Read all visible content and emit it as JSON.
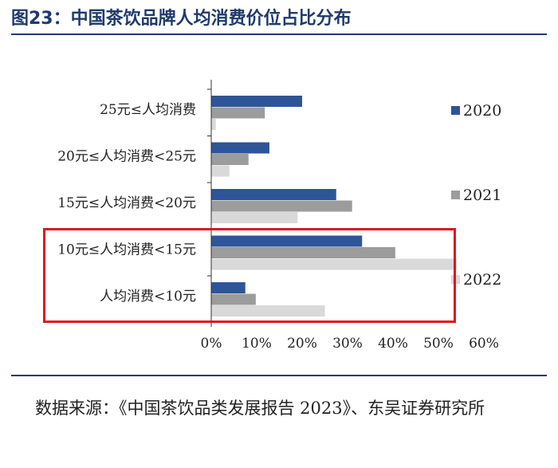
{
  "figure": {
    "title": "图23：中国茶饮品牌人均消费价位占比分布",
    "source": "数据来源：《中国茶饮品类发展报告 2023》、东吴证券研究所"
  },
  "colors": {
    "title": "#1f3a6d",
    "rule": "#1f3a6d",
    "highlight": "#e0151e",
    "series": [
      "#2e5597",
      "#9c9c9c",
      "#d9d9d9"
    ]
  },
  "chart_data": {
    "type": "bar",
    "orientation": "horizontal",
    "categories": [
      "25元≤人均消费",
      "20元≤人均消费<25元",
      "15元≤人均消费<20元",
      "10元≤人均消费<15元",
      "人均消费<10元"
    ],
    "series": [
      {
        "name": "2020",
        "values": [
          20,
          12.8,
          27.5,
          33.2,
          7.5
        ]
      },
      {
        "name": "2021",
        "values": [
          11.8,
          8.2,
          31,
          40.5,
          9.8
        ]
      },
      {
        "name": "2022",
        "values": [
          1,
          4,
          19,
          54,
          25
        ]
      }
    ],
    "xticks": [
      "0%",
      "10%",
      "20%",
      "30%",
      "40%",
      "50%",
      "60%"
    ],
    "xlim": [
      0,
      60
    ],
    "grid": false,
    "legend": "right",
    "annotation": "red box around 10元≤人均消费<15元 and 人均消费<10元"
  }
}
